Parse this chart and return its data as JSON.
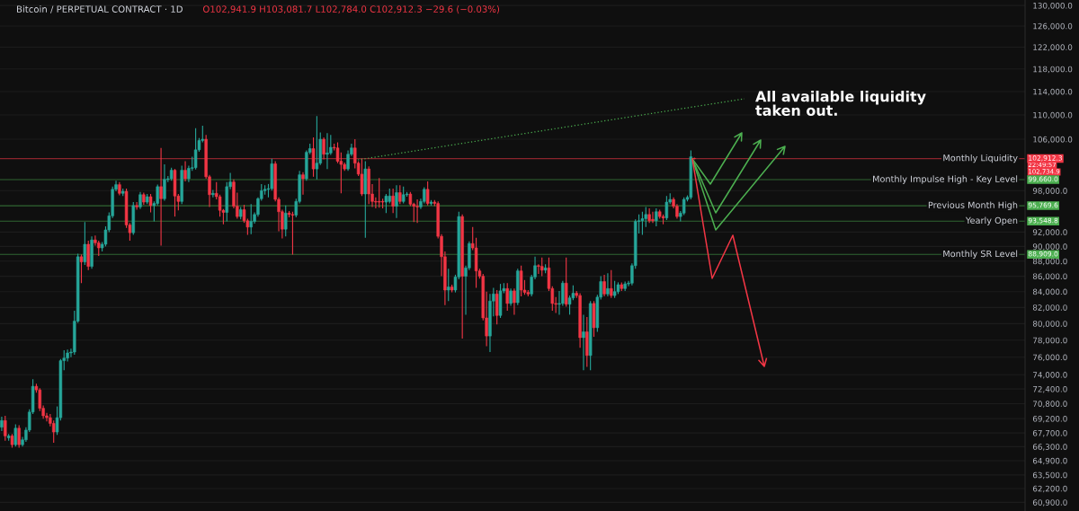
{
  "chart_data": {
    "type": "candlestick",
    "title": "Bitcoin / PERPETUAL CONTRACT · 1D",
    "subtitle": "O102,941.9 H103,081.7 L102,784.0 C102,912.3 −29.6 (−0.03%)",
    "annotations": [
      "All available liquidity\ntaken out.",
      "22:49:57",
      "102,734.9",
      "102,912.3",
      "99,660.0",
      "95,769.6",
      "93,548.8",
      "88,909.0"
    ],
    "categories": [
      null,
      null,
      null,
      null,
      null,
      null,
      null,
      null,
      null,
      null,
      null,
      null,
      null,
      null,
      null,
      null,
      null,
      null,
      null,
      null,
      null,
      null,
      null,
      null,
      null,
      null,
      null,
      null,
      null,
      null,
      null,
      null,
      null,
      null,
      null,
      null,
      null,
      null,
      null,
      null,
      null,
      null,
      null,
      null,
      null,
      null,
      null,
      null,
      null,
      null,
      null,
      null,
      null,
      null,
      null,
      null,
      null,
      null,
      null,
      null,
      null,
      null,
      null,
      null,
      null,
      null,
      null,
      null,
      null,
      null,
      null,
      null,
      null,
      null,
      null,
      null,
      null,
      null,
      null,
      null,
      null,
      null,
      null,
      null,
      null,
      null,
      null,
      null,
      null,
      null,
      null,
      null,
      null,
      null,
      null,
      null,
      null,
      null,
      null,
      null,
      null,
      null,
      null,
      null,
      null,
      null,
      null,
      null,
      null,
      null,
      null,
      null,
      null,
      null,
      null,
      null,
      null,
      null,
      null,
      null,
      null,
      null,
      null,
      null,
      null,
      null,
      null,
      null,
      null,
      null,
      null,
      null,
      null,
      null,
      null,
      null,
      null,
      null,
      null,
      null,
      null,
      null,
      null,
      null,
      null,
      null,
      null,
      null,
      null,
      null,
      null,
      null,
      null,
      null,
      null,
      null,
      null,
      null,
      null,
      null,
      null,
      null,
      null,
      null,
      null,
      null,
      null,
      null,
      null,
      null,
      null,
      null,
      null,
      null,
      null,
      null,
      null,
      null,
      null,
      null,
      null,
      null,
      null,
      null,
      null,
      null,
      null,
      null,
      null,
      null,
      null,
      null,
      null,
      null,
      null,
      null,
      null,
      null,
      null,
      null,
      null,
      null,
      null,
      null,
      null,
      null,
      null,
      null,
      null,
      null,
      null,
      null,
      null,
      null,
      null,
      null,
      null,
      null,
      null,
      null,
      null,
      null,
      null,
      null,
      null,
      null,
      null,
      null,
      null,
      null,
      null,
      null,
      null,
      null,
      null,
      null,
      null,
      null,
      null,
      null,
      null,
      null,
      null,
      null,
      null,
      null,
      null,
      null,
      null,
      null,
      null,
      null,
      null,
      null,
      null,
      null,
      null,
      null,
      null,
      null,
      null,
      null,
      null,
      null,
      null,
      null,
      null,
      null,
      null,
      null,
      null,
      null,
      null,
      null,
      null,
      null,
      null,
      null,
      null,
      null,
      null,
      null,
      null,
      null,
      null,
      null,
      null,
      null,
      null,
      null,
      null,
      null,
      null,
      null,
      null,
      null
    ],
    "ohlc": [
      [
        68300,
        69400,
        67900,
        69000
      ],
      [
        69000,
        69500,
        66900,
        67400
      ],
      [
        67200,
        67600,
        66900,
        67400
      ],
      [
        67400,
        67600,
        66200,
        66500
      ],
      [
        66500,
        68600,
        66300,
        68200
      ],
      [
        68200,
        68500,
        66200,
        66500
      ],
      [
        66500,
        67300,
        66300,
        67000
      ],
      [
        67000,
        68300,
        66800,
        68000
      ],
      [
        68000,
        70200,
        67800,
        69900
      ],
      [
        69900,
        73500,
        69700,
        72700
      ],
      [
        72700,
        73000,
        72000,
        72300
      ],
      [
        72300,
        72500,
        70000,
        70300
      ],
      [
        70300,
        70600,
        69200,
        69500
      ],
      [
        69500,
        69800,
        68900,
        69300
      ],
      [
        69300,
        69700,
        68400,
        68700
      ],
      [
        68700,
        69000,
        66700,
        67800
      ],
      [
        67800,
        70500,
        67500,
        69300
      ],
      [
        69300,
        75800,
        69000,
        75600
      ],
      [
        75600,
        76800,
        74500,
        75900
      ],
      [
        75900,
        76900,
        75500,
        76500
      ],
      [
        76500,
        77000,
        76000,
        76600
      ],
      [
        76600,
        81600,
        76300,
        80300
      ],
      [
        80300,
        89000,
        80100,
        88600
      ],
      [
        88600,
        88900,
        85100,
        87900
      ],
      [
        87900,
        93400,
        87500,
        90300
      ],
      [
        90300,
        90800,
        86800,
        87300
      ],
      [
        87300,
        91400,
        87000,
        90900
      ],
      [
        90900,
        91500,
        90100,
        90500
      ],
      [
        90500,
        90800,
        88700,
        89800
      ],
      [
        89800,
        90600,
        89300,
        90300
      ],
      [
        90300,
        92800,
        90000,
        92300
      ],
      [
        92300,
        94800,
        92000,
        94300
      ],
      [
        94300,
        98600,
        94000,
        98200
      ],
      [
        98200,
        99500,
        97900,
        98900
      ],
      [
        98900,
        99300,
        97300,
        97600
      ],
      [
        97600,
        98300,
        97200,
        97900
      ],
      [
        97900,
        98300,
        92600,
        93000
      ],
      [
        93000,
        93300,
        90800,
        91900
      ],
      [
        91900,
        96300,
        91600,
        95800
      ],
      [
        95800,
        96300,
        95200,
        95600
      ],
      [
        95600,
        97800,
        95300,
        97400
      ],
      [
        97400,
        97700,
        95900,
        96300
      ],
      [
        96300,
        97500,
        96000,
        97100
      ],
      [
        97100,
        97500,
        94800,
        95800
      ],
      [
        95800,
        96400,
        93500,
        96100
      ],
      [
        96100,
        98900,
        95800,
        98600
      ],
      [
        98600,
        104600,
        90100,
        96800
      ],
      [
        96800,
        102000,
        96500,
        99700
      ],
      [
        99700,
        100200,
        99300,
        99800
      ],
      [
        99800,
        101500,
        99500,
        101100
      ],
      [
        101100,
        101300,
        94200,
        97200
      ],
      [
        97200,
        97500,
        95100,
        96400
      ],
      [
        96400,
        101800,
        96000,
        101100
      ],
      [
        101100,
        102500,
        99400,
        99800
      ],
      [
        99800,
        101800,
        99300,
        101400
      ],
      [
        101400,
        103200,
        101000,
        101500
      ],
      [
        101500,
        107800,
        101200,
        104300
      ],
      [
        104300,
        106200,
        104000,
        105800
      ],
      [
        105800,
        108200,
        105500,
        106000
      ],
      [
        106000,
        106700,
        99800,
        100100
      ],
      [
        100100,
        100400,
        95600,
        97400
      ],
      [
        97400,
        98100,
        97000,
        97600
      ],
      [
        97600,
        99300,
        96700,
        97100
      ],
      [
        97100,
        97400,
        94200,
        95100
      ],
      [
        95100,
        95300,
        93100,
        94800
      ],
      [
        94800,
        99300,
        93500,
        98600
      ],
      [
        98600,
        100700,
        98200,
        99300
      ],
      [
        99300,
        99700,
        95400,
        95700
      ],
      [
        95700,
        97700,
        93900,
        94200
      ],
      [
        94200,
        95600,
        93800,
        95200
      ],
      [
        95200,
        95900,
        93300,
        93600
      ],
      [
        93600,
        93900,
        91600,
        92700
      ],
      [
        92700,
        96000,
        91700,
        93500
      ],
      [
        93500,
        94800,
        93200,
        94500
      ],
      [
        94500,
        97000,
        94200,
        96800
      ],
      [
        96800,
        99000,
        96500,
        98000
      ],
      [
        98000,
        98800,
        97400,
        98200
      ],
      [
        98200,
        99000,
        97000,
        98300
      ],
      [
        98300,
        102900,
        98000,
        102100
      ],
      [
        102100,
        102500,
        96400,
        96700
      ],
      [
        96700,
        97000,
        92100,
        94900
      ],
      [
        94900,
        95200,
        91100,
        92400
      ],
      [
        92400,
        95800,
        91400,
        94700
      ],
      [
        94700,
        95000,
        94100,
        94500
      ],
      [
        94500,
        94900,
        88900,
        94400
      ],
      [
        94400,
        96800,
        94100,
        96400
      ],
      [
        96400,
        101000,
        96100,
        100400
      ],
      [
        100400,
        100800,
        97400,
        99800
      ],
      [
        99800,
        104200,
        99500,
        103900
      ],
      [
        103900,
        105300,
        103600,
        104500
      ],
      [
        104500,
        106300,
        100100,
        101300
      ],
      [
        101300,
        109800,
        99700,
        102200
      ],
      [
        102200,
        107100,
        101900,
        106000
      ],
      [
        106000,
        106300,
        102800,
        103600
      ],
      [
        103600,
        107000,
        101300,
        103800
      ],
      [
        103800,
        106700,
        103500,
        104700
      ],
      [
        104700,
        105300,
        104200,
        104600
      ],
      [
        104600,
        105500,
        102200,
        102500
      ],
      [
        102500,
        103900,
        97600,
        102000
      ],
      [
        102000,
        102300,
        101000,
        101300
      ],
      [
        101300,
        104200,
        101000,
        103600
      ],
      [
        103600,
        105300,
        103300,
        104600
      ],
      [
        104600,
        106000,
        101400,
        102200
      ],
      [
        102200,
        102500,
        100200,
        100500
      ],
      [
        100500,
        102900,
        97200,
        97500
      ],
      [
        97500,
        102500,
        91200,
        101300
      ],
      [
        101300,
        101700,
        96000,
        97500
      ],
      [
        97500,
        99000,
        95600,
        96400
      ],
      [
        96400,
        97000,
        95400,
        96300
      ],
      [
        96400,
        99900,
        95500,
        96300
      ],
      [
        96400,
        96800,
        95400,
        96300
      ],
      [
        96300,
        97500,
        94700,
        97200
      ],
      [
        96400,
        98300,
        96100,
        97200
      ],
      [
        97200,
        98300,
        94700,
        95700
      ],
      [
        95700,
        98800,
        94000,
        97700
      ],
      [
        97700,
        98800,
        96000,
        96400
      ],
      [
        96400,
        98600,
        96100,
        97400
      ],
      [
        97400,
        97800,
        97100,
        97500
      ],
      [
        97500,
        97800,
        95700,
        96000
      ],
      [
        96000,
        96200,
        93400,
        95700
      ],
      [
        95700,
        96700,
        93300,
        95600
      ],
      [
        95600,
        96800,
        95300,
        96400
      ],
      [
        96400,
        98500,
        96100,
        98200
      ],
      [
        98200,
        99400,
        95800,
        96100
      ],
      [
        96100,
        96600,
        95800,
        96300
      ],
      [
        96300,
        96600,
        95700,
        96100
      ],
      [
        96100,
        96400,
        91100,
        91400
      ],
      [
        91400,
        91700,
        86000,
        88600
      ],
      [
        88600,
        89300,
        82300,
        84200
      ],
      [
        84200,
        87000,
        82800,
        84600
      ],
      [
        84600,
        84900,
        83900,
        84200
      ],
      [
        84200,
        86200,
        83900,
        85900
      ],
      [
        85900,
        94900,
        85600,
        94200
      ],
      [
        94200,
        94500,
        78200,
        86000
      ],
      [
        86000,
        87400,
        81100,
        87100
      ],
      [
        87100,
        90700,
        86800,
        90400
      ],
      [
        90400,
        92700,
        89500,
        89800
      ],
      [
        89800,
        91200,
        84500,
        86700
      ],
      [
        86700,
        87000,
        85700,
        86000
      ],
      [
        86000,
        86300,
        80400,
        80700
      ],
      [
        80700,
        84000,
        77300,
        78500
      ],
      [
        78500,
        83700,
        76600,
        82800
      ],
      [
        82800,
        84500,
        80900,
        83700
      ],
      [
        83700,
        84200,
        79900,
        81000
      ],
      [
        81000,
        85000,
        80700,
        84100
      ],
      [
        84100,
        85100,
        83800,
        84400
      ],
      [
        84400,
        85100,
        81600,
        82500
      ],
      [
        82500,
        84400,
        82200,
        84100
      ],
      [
        84100,
        84400,
        81100,
        82600
      ],
      [
        82600,
        87000,
        82300,
        86700
      ],
      [
        86700,
        87400,
        83400,
        84200
      ],
      [
        84200,
        85500,
        83600,
        83900
      ],
      [
        83900,
        84200,
        83400,
        83700
      ],
      [
        83700,
        86200,
        83400,
        85900
      ],
      [
        85900,
        88600,
        85600,
        87400
      ],
      [
        87400,
        87600,
        86300,
        87300
      ],
      [
        87300,
        88500,
        86000,
        86800
      ],
      [
        86800,
        87600,
        86400,
        87100
      ],
      [
        87100,
        88500,
        84100,
        84400
      ],
      [
        84400,
        84700,
        81600,
        82500
      ],
      [
        82500,
        83300,
        81300,
        82400
      ],
      [
        82400,
        84100,
        81100,
        82500
      ],
      [
        82500,
        85400,
        82200,
        85100
      ],
      [
        85100,
        88500,
        82100,
        82400
      ],
      [
        82400,
        83500,
        81100,
        83200
      ],
      [
        83200,
        84800,
        82900,
        83800
      ],
      [
        83800,
        84100,
        83200,
        83500
      ],
      [
        83500,
        83800,
        77100,
        78300
      ],
      [
        78300,
        81100,
        74500,
        79000
      ],
      [
        79000,
        80800,
        74900,
        76200
      ],
      [
        76200,
        82800,
        74500,
        82500
      ],
      [
        82500,
        82800,
        78400,
        79500
      ],
      [
        79500,
        83600,
        79000,
        83300
      ],
      [
        83300,
        86000,
        83000,
        85300
      ],
      [
        85300,
        86200,
        83400,
        83700
      ],
      [
        83700,
        86400,
        83400,
        84400
      ],
      [
        84400,
        86800,
        83200,
        83500
      ],
      [
        83500,
        85400,
        83200,
        84000
      ],
      [
        84000,
        85200,
        83700,
        84900
      ],
      [
        84900,
        85200,
        84100,
        84400
      ],
      [
        84400,
        85300,
        84100,
        85000
      ],
      [
        85000,
        85400,
        84700,
        85100
      ],
      [
        85100,
        87700,
        84800,
        87400
      ],
      [
        87400,
        93800,
        87000,
        93500
      ],
      [
        93500,
        94500,
        91800,
        93600
      ],
      [
        93600,
        94900,
        91600,
        93900
      ],
      [
        93900,
        95600,
        92700,
        94500
      ],
      [
        94500,
        95400,
        93300,
        93600
      ],
      [
        93800,
        94900,
        93300,
        93600
      ],
      [
        93600,
        95400,
        92800,
        94900
      ],
      [
        94900,
        95200,
        93900,
        94200
      ],
      [
        94200,
        94500,
        93100,
        94000
      ],
      [
        94000,
        97200,
        93700,
        96300
      ],
      [
        96300,
        97600,
        96000,
        96700
      ],
      [
        96700,
        97000,
        95400,
        95700
      ],
      [
        95700,
        96000,
        93900,
        94200
      ],
      [
        94200,
        95000,
        93500,
        94700
      ],
      [
        94700,
        97000,
        94400,
        96700
      ],
      [
        96700,
        97300,
        96400,
        97000
      ],
      [
        97000,
        104200,
        96700,
        103200
      ],
      [
        102941.9,
        103081.7,
        102784.0,
        102912.3
      ],
      null,
      null,
      null,
      null,
      null,
      null,
      null,
      null,
      null,
      null,
      null,
      null,
      null,
      null,
      null,
      null,
      null,
      null,
      null,
      null,
      null,
      null,
      null,
      null,
      null,
      null,
      null,
      null,
      null,
      null,
      null,
      null,
      null,
      null,
      null,
      null,
      null,
      null,
      null,
      null,
      null,
      null,
      null,
      null,
      null,
      null,
      null,
      null,
      null,
      null,
      null,
      null,
      null,
      null,
      null,
      null,
      null,
      null,
      null,
      null,
      null,
      null,
      null,
      null,
      null,
      null,
      null,
      null,
      null,
      null,
      null,
      null,
      null,
      null,
      null,
      null,
      null,
      null,
      null,
      null,
      null,
      null,
      null,
      null,
      null,
      null,
      null,
      null,
      null,
      null,
      null,
      null,
      null,
      null,
      null
    ],
    "log": true,
    "ylim": [
      60100,
      131100
    ],
    "yticks": [
      {
        "value": 130000,
        "label": "130,000.0"
      },
      {
        "value": 126000,
        "label": "126,000.0"
      },
      {
        "value": 122000,
        "label": "122,000.0"
      },
      {
        "value": 118000,
        "label": "118,000.0"
      },
      {
        "value": 114000,
        "label": "114,000.0"
      },
      {
        "value": 110000,
        "label": "110,000.0"
      },
      {
        "value": 106000,
        "label": "106,000.0"
      },
      {
        "value": 98000,
        "label": "98,000.0"
      },
      {
        "value": 92000,
        "label": "92,000.0"
      },
      {
        "value": 90000,
        "label": "90,000.0"
      },
      {
        "value": 88000,
        "label": "88,000.0"
      },
      {
        "value": 86000,
        "label": "86,000.0"
      },
      {
        "value": 84000,
        "label": "84,000.0"
      },
      {
        "value": 82000,
        "label": "82,000.0"
      },
      {
        "value": 80000,
        "label": "80,000.0"
      },
      {
        "value": 78000,
        "label": "78,000.0"
      },
      {
        "value": 76000,
        "label": "76,000.0"
      },
      {
        "value": 74000,
        "label": "74,000.0"
      },
      {
        "value": 72400,
        "label": "72,400.0"
      },
      {
        "value": 70800,
        "label": "70,800.0"
      },
      {
        "value": 69200,
        "label": "69,200.0"
      },
      {
        "value": 67700,
        "label": "67,700.0"
      },
      {
        "value": 66300,
        "label": "66,300.0"
      },
      {
        "value": 64900,
        "label": "64,900.0"
      },
      {
        "value": 63500,
        "label": "63,500.0"
      },
      {
        "value": 62200,
        "label": "62,200.0"
      },
      {
        "value": 60900,
        "label": "60,900.0"
      }
    ],
    "grid": "y",
    "tick_labels": "y",
    "ref_lines": [
      {
        "axis": "y",
        "value": 102912.3,
        "label": "Monthly Liquidity",
        "color": "#f23645"
      },
      {
        "axis": "y",
        "value": 99660.0,
        "label": "Monthly Impulse High - Key Level",
        "color": "#4caf50"
      },
      {
        "axis": "y",
        "value": 95769.6,
        "label": "Previous Month High",
        "color": "#4caf50"
      },
      {
        "axis": "y",
        "value": 93548.8,
        "label": "Yearly Open",
        "color": "#4caf50"
      },
      {
        "axis": "y",
        "value": 88909.0,
        "label": "Monthly SR Level",
        "color": "#4caf50"
      }
    ]
  }
}
